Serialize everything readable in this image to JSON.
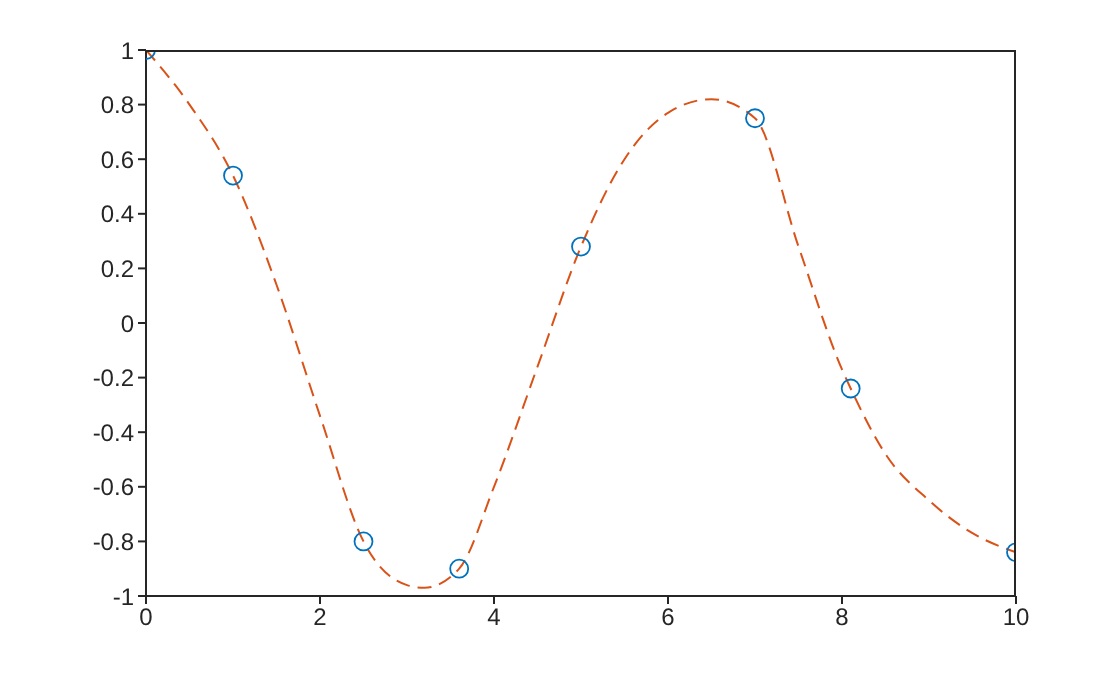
{
  "chart_data": {
    "type": "scatter",
    "xlim": [
      0,
      10
    ],
    "ylim": [
      -1,
      1
    ],
    "xticks": [
      0,
      2,
      4,
      6,
      8,
      10
    ],
    "yticks": [
      -1,
      -0.8,
      -0.6,
      -0.4,
      -0.2,
      0,
      0.2,
      0.4,
      0.6,
      0.8,
      1
    ],
    "grid": false,
    "series": [
      {
        "color": "#0072bd",
        "marker": "circle",
        "x": [
          0,
          1,
          2.5,
          3.6,
          5,
          7,
          8.1,
          10
        ],
        "values": [
          1,
          0.54,
          -0.8,
          -0.9,
          0.28,
          0.75,
          -0.24,
          -0.84
        ]
      },
      {
        "type": "line",
        "color": "#d95319",
        "marker": "none",
        "line_style": "dashed",
        "x": [
          0,
          0.5,
          1,
          1.5,
          2,
          2.5,
          3,
          3.2,
          3.6,
          4,
          4.5,
          5,
          5.5,
          6,
          6.5,
          7,
          7.5,
          8,
          8.1,
          8.5,
          9,
          9.5,
          10
        ],
        "values": [
          1,
          0.8,
          0.54,
          0.14,
          -0.34,
          -0.8,
          -0.96,
          -0.97,
          -0.9,
          -0.6,
          -0.16,
          0.28,
          0.6,
          0.77,
          0.82,
          0.75,
          0.28,
          -0.17,
          -0.24,
          -0.48,
          -0.65,
          -0.77,
          -0.84
        ]
      }
    ]
  }
}
